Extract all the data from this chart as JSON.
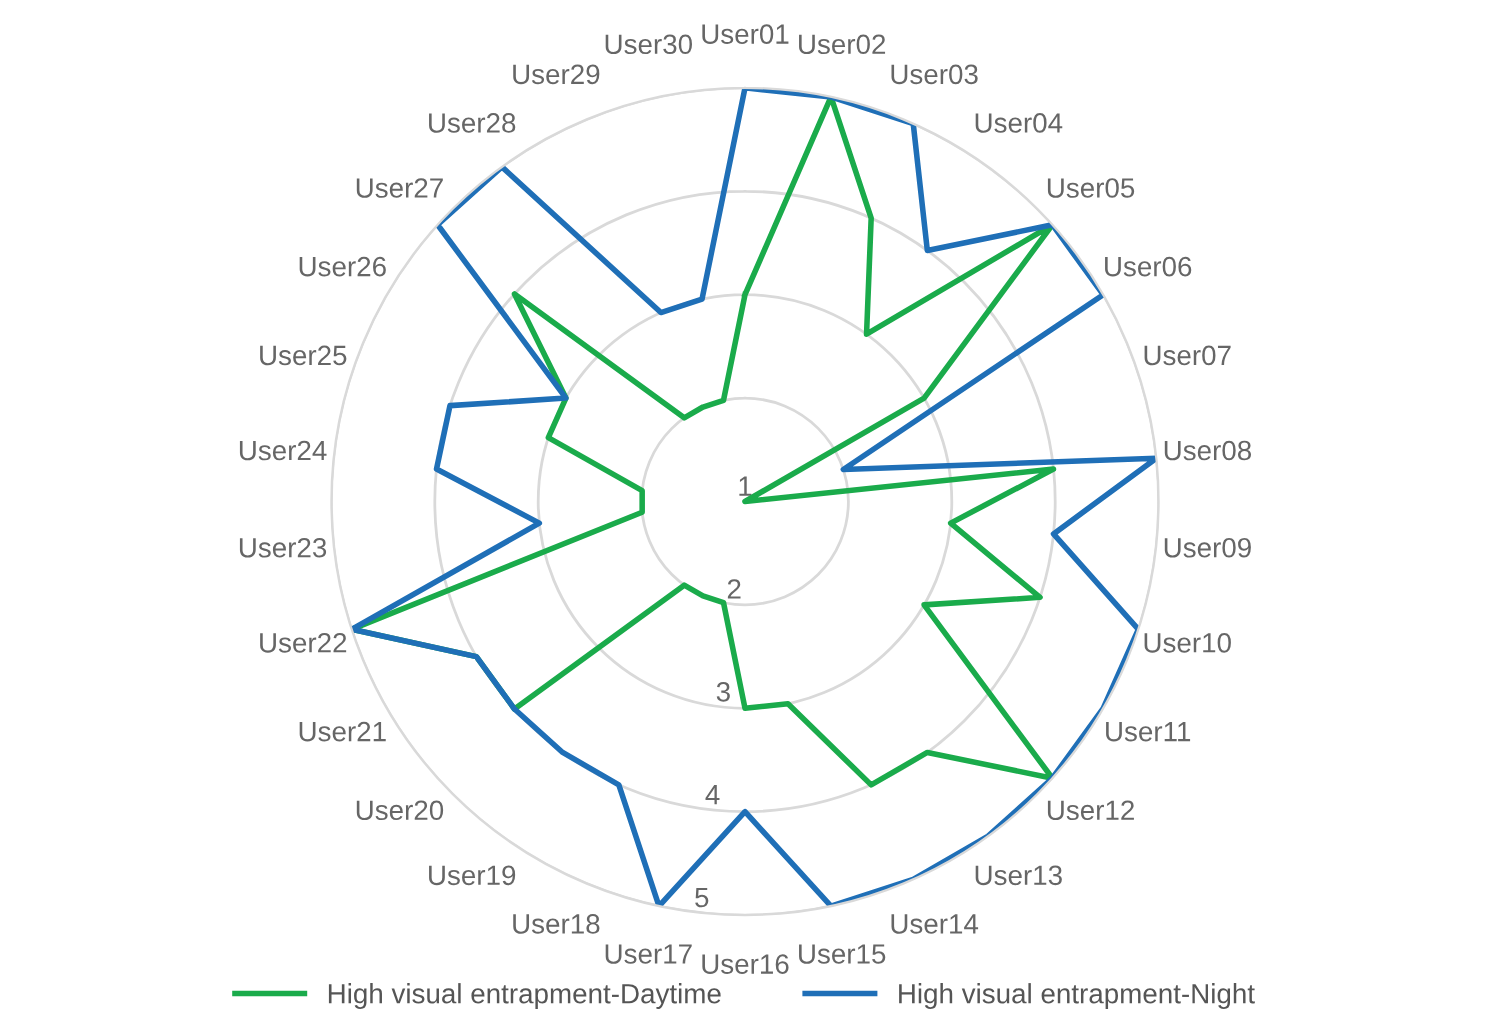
{
  "chart_data": {
    "type": "radar",
    "categories": [
      "User01",
      "User02",
      "User03",
      "User04",
      "User05",
      "User06",
      "User07",
      "User08",
      "User09",
      "User10",
      "User11",
      "User12",
      "User13",
      "User14",
      "User15",
      "User16",
      "User17",
      "User18",
      "User19",
      "User20",
      "User21",
      "User22",
      "User23",
      "User24",
      "User25",
      "User26",
      "User27",
      "User28",
      "User29",
      "User30"
    ],
    "series": [
      {
        "name": "High visual entrapment-Daytime",
        "color": "#1aab4b",
        "values": [
          3,
          5,
          4,
          3,
          5,
          3,
          1,
          4,
          3,
          4,
          3,
          5,
          4,
          4,
          3,
          3,
          2,
          2,
          2,
          4,
          4,
          5,
          2,
          2,
          3,
          3,
          4,
          2,
          2,
          2
        ]
      },
      {
        "name": "High visual entrapment-Night",
        "color": "#1f6fb7",
        "values": [
          5,
          5,
          5,
          4,
          5,
          5,
          2,
          5,
          4,
          5,
          5,
          5,
          5,
          5,
          5,
          4,
          5,
          4,
          4,
          4,
          4,
          5,
          3,
          4,
          4,
          3,
          5,
          5,
          3,
          3
        ]
      }
    ],
    "ylim": [
      1,
      5
    ],
    "yticks": [
      1,
      2,
      3,
      4,
      5
    ],
    "grid": "y",
    "legend": "bottom"
  }
}
